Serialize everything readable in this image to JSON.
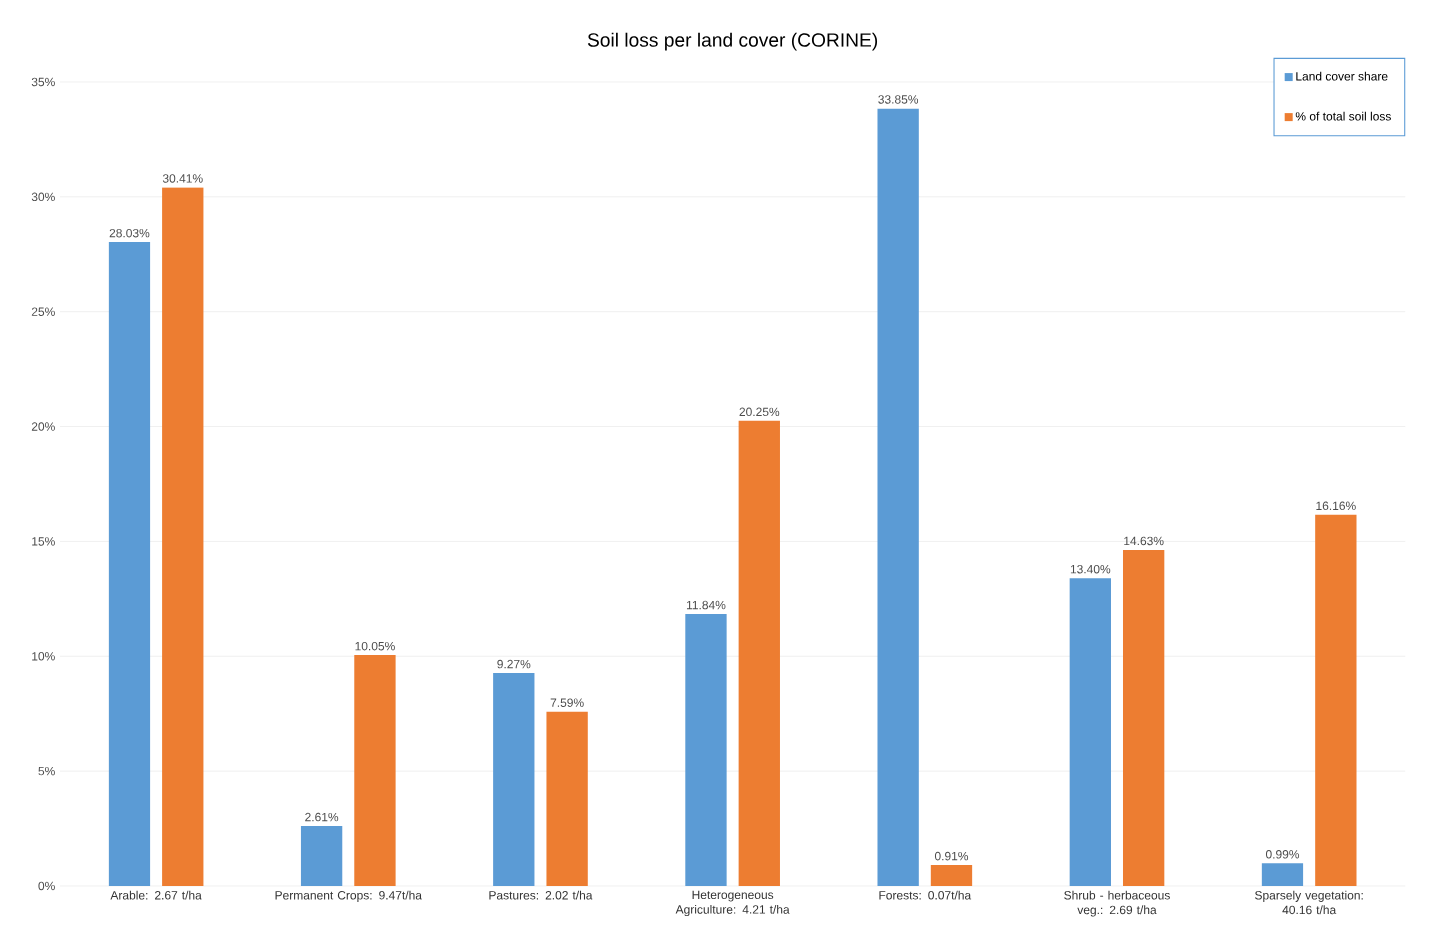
{
  "chart_data": {
    "type": "bar",
    "title": "Soil loss per land cover (CORINE)",
    "categories": [
      "Arable: 2.67 t/ha",
      "Permanent Crops: 9.47t/ha",
      "Pastures: 2.02 t/ha",
      "Heterogeneous Agriculture: 4.21 t/ha",
      "Forests: 0.07t/ha",
      "Shrub - herbaceous veg.: 2.69 t/ha",
      "Sparsely vegetation: 40.16 t/ha"
    ],
    "series": [
      {
        "name": "Land cover share",
        "color": "#5b9bd5",
        "values": [
          28.03,
          2.61,
          9.27,
          11.84,
          33.85,
          13.4,
          0.99
        ],
        "value_labels": [
          "28.03%",
          "2.61%",
          "9.27%",
          "11.84%",
          "33.85%",
          "13.40%",
          "0.99%"
        ]
      },
      {
        "name": "% of total soil loss",
        "color": "#ed7d31",
        "values": [
          30.41,
          10.05,
          7.59,
          20.25,
          0.91,
          14.63,
          16.16
        ],
        "value_labels": [
          "30.41%",
          "10.05%",
          "7.59%",
          "20.25%",
          "0.91%",
          "14.63%",
          "16.16%"
        ]
      }
    ],
    "ylim": [
      0,
      35
    ],
    "yticks": [
      {
        "value": 0,
        "label": "0%"
      },
      {
        "value": 5,
        "label": "5%"
      },
      {
        "value": 10,
        "label": "10%"
      },
      {
        "value": 15,
        "label": "15%"
      },
      {
        "value": 20,
        "label": "20%"
      },
      {
        "value": 25,
        "label": "25%"
      },
      {
        "value": 30,
        "label": "30%"
      },
      {
        "value": 35,
        "label": "35%"
      }
    ],
    "grid": "y",
    "legend": "top right"
  }
}
